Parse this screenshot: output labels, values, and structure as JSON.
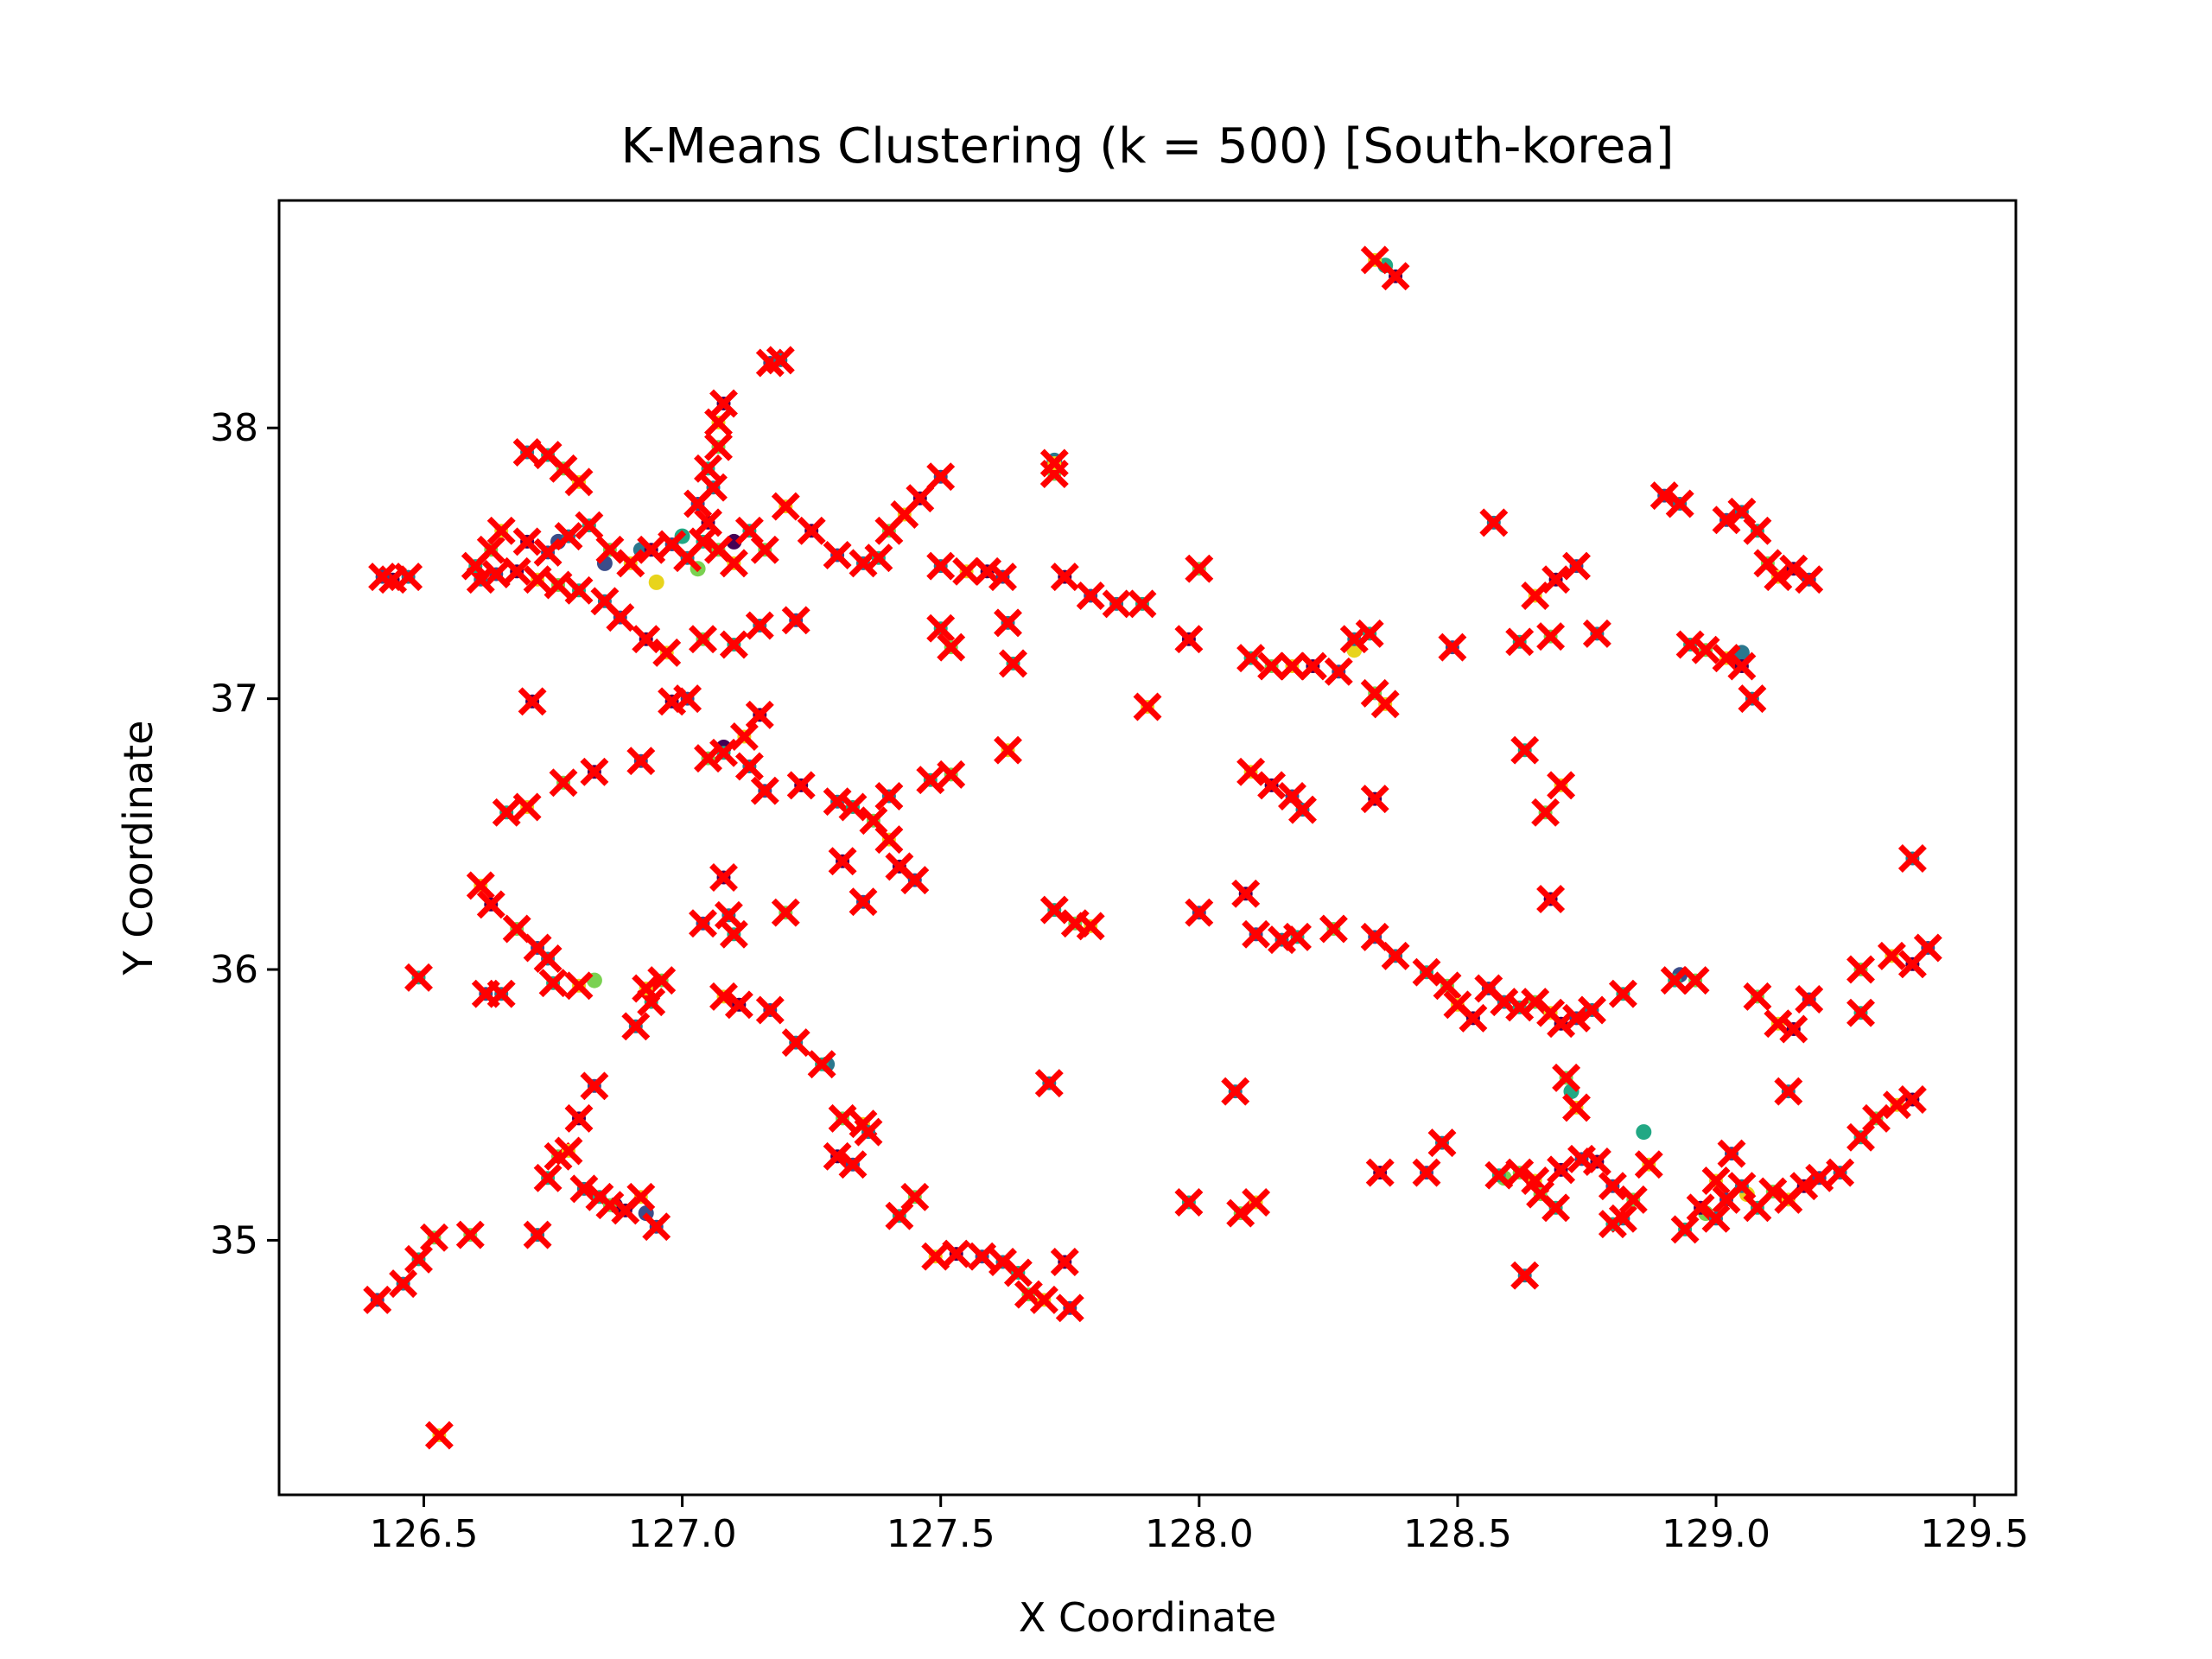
{
  "chart_data": {
    "type": "scatter",
    "title": "K-Means Clustering (k = 500) [South-korea]",
    "xlabel": "X Coordinate",
    "ylabel": "Y Coordinate",
    "xlim": [
      126.22,
      129.58
    ],
    "ylim": [
      34.06,
      38.84
    ],
    "xticks": [
      126.5,
      127.0,
      127.5,
      128.0,
      128.5,
      129.0,
      129.5
    ],
    "yticks": [
      35,
      36,
      37,
      38
    ],
    "grid": false,
    "legend": "none",
    "colors": {
      "centroid": "#ff0000",
      "point_palette": [
        "#3b4d8a",
        "#2a788e",
        "#22a884",
        "#7ad151",
        "#e8d41c",
        "#440154"
      ]
    },
    "series": [
      {
        "role": "centroids",
        "marker": "x",
        "points": [
          [
            126.41,
            34.78
          ],
          [
            126.46,
            34.84
          ],
          [
            126.49,
            34.93
          ],
          [
            126.52,
            35.01
          ],
          [
            126.53,
            34.28
          ],
          [
            126.44,
            37.44
          ],
          [
            126.42,
            37.45
          ],
          [
            126.47,
            37.45
          ],
          [
            126.49,
            35.97
          ],
          [
            126.59,
            35.02
          ],
          [
            126.61,
            36.31
          ],
          [
            126.63,
            36.24
          ],
          [
            126.62,
            35.91
          ],
          [
            126.65,
            35.91
          ],
          [
            126.66,
            36.58
          ],
          [
            126.68,
            36.15
          ],
          [
            126.7,
            36.6
          ],
          [
            126.71,
            36.99
          ],
          [
            126.72,
            36.08
          ],
          [
            126.74,
            36.04
          ],
          [
            126.75,
            35.95
          ],
          [
            126.77,
            36.69
          ],
          [
            126.8,
            35.94
          ],
          [
            126.83,
            36.73
          ],
          [
            126.92,
            36.77
          ],
          [
            126.91,
            35.79
          ],
          [
            126.94,
            35.88
          ],
          [
            126.96,
            35.96
          ],
          [
            126.93,
            35.93
          ],
          [
            126.98,
            36.99
          ],
          [
            127.01,
            37.0
          ],
          [
            126.72,
            35.02
          ],
          [
            126.74,
            35.23
          ],
          [
            126.76,
            35.31
          ],
          [
            126.78,
            35.33
          ],
          [
            126.8,
            35.45
          ],
          [
            126.83,
            35.57
          ],
          [
            126.81,
            35.19
          ],
          [
            126.84,
            35.16
          ],
          [
            126.86,
            35.13
          ],
          [
            126.92,
            35.16
          ],
          [
            126.89,
            35.11
          ],
          [
            126.95,
            35.05
          ],
          [
            126.7,
            37.91
          ],
          [
            126.74,
            37.9
          ],
          [
            126.77,
            37.85
          ],
          [
            126.8,
            37.8
          ],
          [
            127.08,
            36.34
          ],
          [
            127.04,
            36.17
          ],
          [
            127.09,
            36.2
          ],
          [
            127.1,
            36.13
          ],
          [
            127.2,
            36.21
          ],
          [
            127.08,
            35.9
          ],
          [
            127.11,
            35.87
          ],
          [
            127.17,
            35.85
          ],
          [
            127.22,
            35.73
          ],
          [
            127.27,
            35.65
          ],
          [
            127.31,
            35.45
          ],
          [
            127.35,
            35.43
          ],
          [
            127.3,
            35.31
          ],
          [
            127.33,
            35.28
          ],
          [
            127.36,
            35.4
          ],
          [
            127.42,
            35.09
          ],
          [
            127.45,
            35.16
          ],
          [
            127.49,
            34.94
          ],
          [
            127.53,
            34.95
          ],
          [
            127.58,
            34.94
          ],
          [
            127.62,
            34.92
          ],
          [
            127.65,
            34.88
          ],
          [
            127.67,
            34.8
          ],
          [
            127.7,
            34.78
          ],
          [
            127.74,
            34.92
          ],
          [
            127.75,
            34.75
          ],
          [
            127.71,
            35.58
          ],
          [
            127.72,
            36.22
          ],
          [
            127.76,
            36.17
          ],
          [
            127.79,
            36.16
          ],
          [
            127.31,
            36.4
          ],
          [
            127.35,
            36.25
          ],
          [
            127.3,
            36.62
          ],
          [
            127.33,
            36.6
          ],
          [
            127.37,
            36.55
          ],
          [
            127.4,
            36.48
          ],
          [
            127.42,
            36.38
          ],
          [
            127.45,
            36.33
          ],
          [
            127.4,
            36.64
          ],
          [
            127.48,
            36.7
          ],
          [
            127.52,
            36.72
          ],
          [
            127.63,
            36.81
          ],
          [
            127.23,
            36.68
          ],
          [
            127.16,
            36.66
          ],
          [
            127.13,
            36.75
          ],
          [
            127.08,
            36.8
          ],
          [
            127.05,
            36.78
          ],
          [
            127.12,
            36.86
          ],
          [
            127.15,
            36.94
          ],
          [
            127.22,
            37.29
          ],
          [
            127.15,
            37.27
          ],
          [
            127.1,
            37.2
          ],
          [
            127.04,
            37.22
          ],
          [
            126.97,
            37.17
          ],
          [
            126.93,
            37.22
          ],
          [
            126.88,
            37.3
          ],
          [
            126.85,
            37.36
          ],
          [
            126.8,
            37.4
          ],
          [
            126.76,
            37.42
          ],
          [
            126.72,
            37.44
          ],
          [
            126.68,
            37.47
          ],
          [
            126.64,
            37.46
          ],
          [
            126.61,
            37.44
          ],
          [
            126.6,
            37.49
          ],
          [
            126.63,
            37.55
          ],
          [
            126.65,
            37.62
          ],
          [
            126.7,
            37.58
          ],
          [
            126.74,
            37.54
          ],
          [
            126.78,
            37.6
          ],
          [
            126.82,
            37.64
          ],
          [
            126.86,
            37.55
          ],
          [
            126.9,
            37.5
          ],
          [
            126.94,
            37.55
          ],
          [
            126.98,
            37.57
          ],
          [
            127.01,
            37.52
          ],
          [
            127.04,
            37.58
          ],
          [
            127.07,
            37.55
          ],
          [
            127.1,
            37.5
          ],
          [
            127.05,
            37.65
          ],
          [
            127.03,
            37.72
          ],
          [
            127.06,
            37.78
          ],
          [
            127.05,
            37.85
          ],
          [
            127.07,
            37.93
          ],
          [
            127.07,
            38.02
          ],
          [
            127.08,
            38.09
          ],
          [
            127.17,
            38.24
          ],
          [
            127.19,
            38.25
          ],
          [
            127.13,
            37.62
          ],
          [
            127.16,
            37.55
          ],
          [
            127.2,
            37.71
          ],
          [
            127.25,
            37.62
          ],
          [
            127.3,
            37.53
          ],
          [
            127.35,
            37.5
          ],
          [
            127.38,
            37.52
          ],
          [
            127.4,
            37.62
          ],
          [
            127.43,
            37.68
          ],
          [
            127.46,
            37.74
          ],
          [
            127.5,
            37.82
          ],
          [
            127.5,
            37.49
          ],
          [
            127.5,
            37.26
          ],
          [
            127.52,
            37.19
          ],
          [
            127.55,
            37.47
          ],
          [
            127.59,
            37.47
          ],
          [
            127.62,
            37.45
          ],
          [
            127.63,
            37.28
          ],
          [
            127.64,
            37.13
          ],
          [
            127.72,
            37.83
          ],
          [
            127.72,
            37.87
          ],
          [
            127.74,
            37.45
          ],
          [
            127.79,
            37.38
          ],
          [
            127.84,
            37.35
          ],
          [
            127.89,
            37.35
          ],
          [
            128.0,
            37.48
          ],
          [
            127.9,
            36.97
          ],
          [
            127.98,
            37.22
          ],
          [
            128.0,
            36.21
          ],
          [
            128.07,
            35.55
          ],
          [
            127.98,
            35.14
          ],
          [
            128.08,
            35.1
          ],
          [
            128.11,
            35.14
          ],
          [
            128.09,
            36.28
          ],
          [
            128.11,
            36.13
          ],
          [
            128.16,
            36.11
          ],
          [
            128.19,
            36.12
          ],
          [
            128.26,
            36.15
          ],
          [
            128.1,
            36.73
          ],
          [
            128.14,
            36.68
          ],
          [
            128.18,
            36.64
          ],
          [
            128.2,
            36.59
          ],
          [
            128.1,
            37.15
          ],
          [
            128.14,
            37.12
          ],
          [
            128.18,
            37.12
          ],
          [
            128.22,
            37.12
          ],
          [
            128.27,
            37.1
          ],
          [
            128.3,
            37.22
          ],
          [
            128.33,
            37.24
          ],
          [
            128.34,
            37.02
          ],
          [
            128.36,
            36.98
          ],
          [
            128.34,
            36.63
          ],
          [
            128.34,
            36.12
          ],
          [
            128.38,
            36.05
          ],
          [
            128.44,
            35.99
          ],
          [
            128.48,
            35.94
          ],
          [
            128.5,
            35.87
          ],
          [
            128.53,
            35.82
          ],
          [
            128.56,
            35.93
          ],
          [
            128.59,
            35.88
          ],
          [
            128.62,
            35.86
          ],
          [
            128.65,
            35.88
          ],
          [
            128.68,
            35.84
          ],
          [
            128.7,
            35.8
          ],
          [
            128.73,
            35.82
          ],
          [
            128.76,
            35.85
          ],
          [
            128.82,
            35.91
          ],
          [
            128.71,
            35.6
          ],
          [
            128.73,
            35.49
          ],
          [
            128.77,
            35.29
          ],
          [
            128.8,
            35.2
          ],
          [
            128.82,
            35.08
          ],
          [
            128.8,
            35.06
          ],
          [
            128.84,
            35.15
          ],
          [
            128.87,
            35.28
          ],
          [
            128.35,
            35.25
          ],
          [
            128.44,
            35.25
          ],
          [
            128.47,
            35.36
          ],
          [
            128.58,
            35.24
          ],
          [
            128.62,
            35.25
          ],
          [
            128.65,
            35.22
          ],
          [
            128.7,
            35.26
          ],
          [
            128.74,
            35.3
          ],
          [
            128.63,
            34.87
          ],
          [
            128.69,
            35.12
          ],
          [
            128.66,
            35.17
          ],
          [
            128.34,
            38.62
          ],
          [
            128.38,
            38.56
          ],
          [
            128.49,
            37.19
          ],
          [
            128.57,
            37.65
          ],
          [
            128.62,
            37.21
          ],
          [
            128.68,
            37.23
          ],
          [
            128.65,
            37.38
          ],
          [
            128.69,
            37.44
          ],
          [
            128.73,
            37.49
          ],
          [
            128.77,
            37.24
          ],
          [
            128.63,
            36.81
          ],
          [
            128.67,
            36.58
          ],
          [
            128.7,
            36.68
          ],
          [
            128.68,
            36.26
          ],
          [
            128.9,
            37.75
          ],
          [
            128.93,
            37.72
          ],
          [
            128.95,
            37.2
          ],
          [
            128.98,
            37.18
          ],
          [
            129.02,
            37.15
          ],
          [
            129.05,
            37.12
          ],
          [
            129.02,
            37.66
          ],
          [
            129.05,
            37.69
          ],
          [
            129.08,
            37.62
          ],
          [
            129.1,
            37.5
          ],
          [
            129.12,
            37.45
          ],
          [
            129.15,
            37.48
          ],
          [
            129.18,
            37.44
          ],
          [
            129.07,
            37.0
          ],
          [
            128.92,
            35.96
          ],
          [
            128.96,
            35.96
          ],
          [
            129.0,
            35.22
          ],
          [
            128.97,
            35.12
          ],
          [
            129.02,
            35.15
          ],
          [
            129.05,
            35.2
          ],
          [
            129.08,
            35.12
          ],
          [
            129.11,
            35.18
          ],
          [
            129.14,
            35.15
          ],
          [
            129.17,
            35.2
          ],
          [
            129.2,
            35.23
          ],
          [
            129.24,
            35.25
          ],
          [
            129.28,
            35.38
          ],
          [
            129.31,
            35.45
          ],
          [
            129.35,
            35.5
          ],
          [
            129.38,
            35.52
          ],
          [
            129.03,
            35.32
          ],
          [
            129.0,
            35.08
          ],
          [
            128.94,
            35.04
          ],
          [
            129.08,
            35.9
          ],
          [
            129.12,
            35.8
          ],
          [
            129.15,
            35.78
          ],
          [
            129.18,
            35.89
          ],
          [
            129.14,
            35.55
          ],
          [
            129.28,
            35.84
          ],
          [
            129.28,
            36.0
          ],
          [
            129.34,
            36.05
          ],
          [
            129.38,
            36.02
          ],
          [
            129.41,
            36.08
          ],
          [
            129.38,
            36.41
          ]
        ]
      },
      {
        "role": "data-points",
        "marker": "dot",
        "points": [
          [
            126.76,
            37.58
          ],
          [
            126.92,
            37.55
          ],
          [
            127.0,
            37.6
          ],
          [
            127.03,
            37.48
          ],
          [
            126.95,
            37.43
          ],
          [
            127.1,
            37.58
          ],
          [
            126.85,
            37.5
          ],
          [
            127.28,
            35.65
          ],
          [
            128.86,
            35.4
          ],
          [
            128.98,
            35.1
          ],
          [
            129.06,
            35.17
          ],
          [
            126.87,
            35.13
          ],
          [
            126.93,
            35.1
          ],
          [
            127.72,
            37.88
          ],
          [
            128.36,
            38.6
          ],
          [
            126.83,
            35.96
          ],
          [
            128.3,
            37.18
          ],
          [
            127.08,
            36.82
          ],
          [
            128.93,
            35.98
          ],
          [
            129.05,
            37.17
          ],
          [
            128.72,
            35.55
          ],
          [
            128.59,
            35.23
          ]
        ]
      }
    ]
  }
}
